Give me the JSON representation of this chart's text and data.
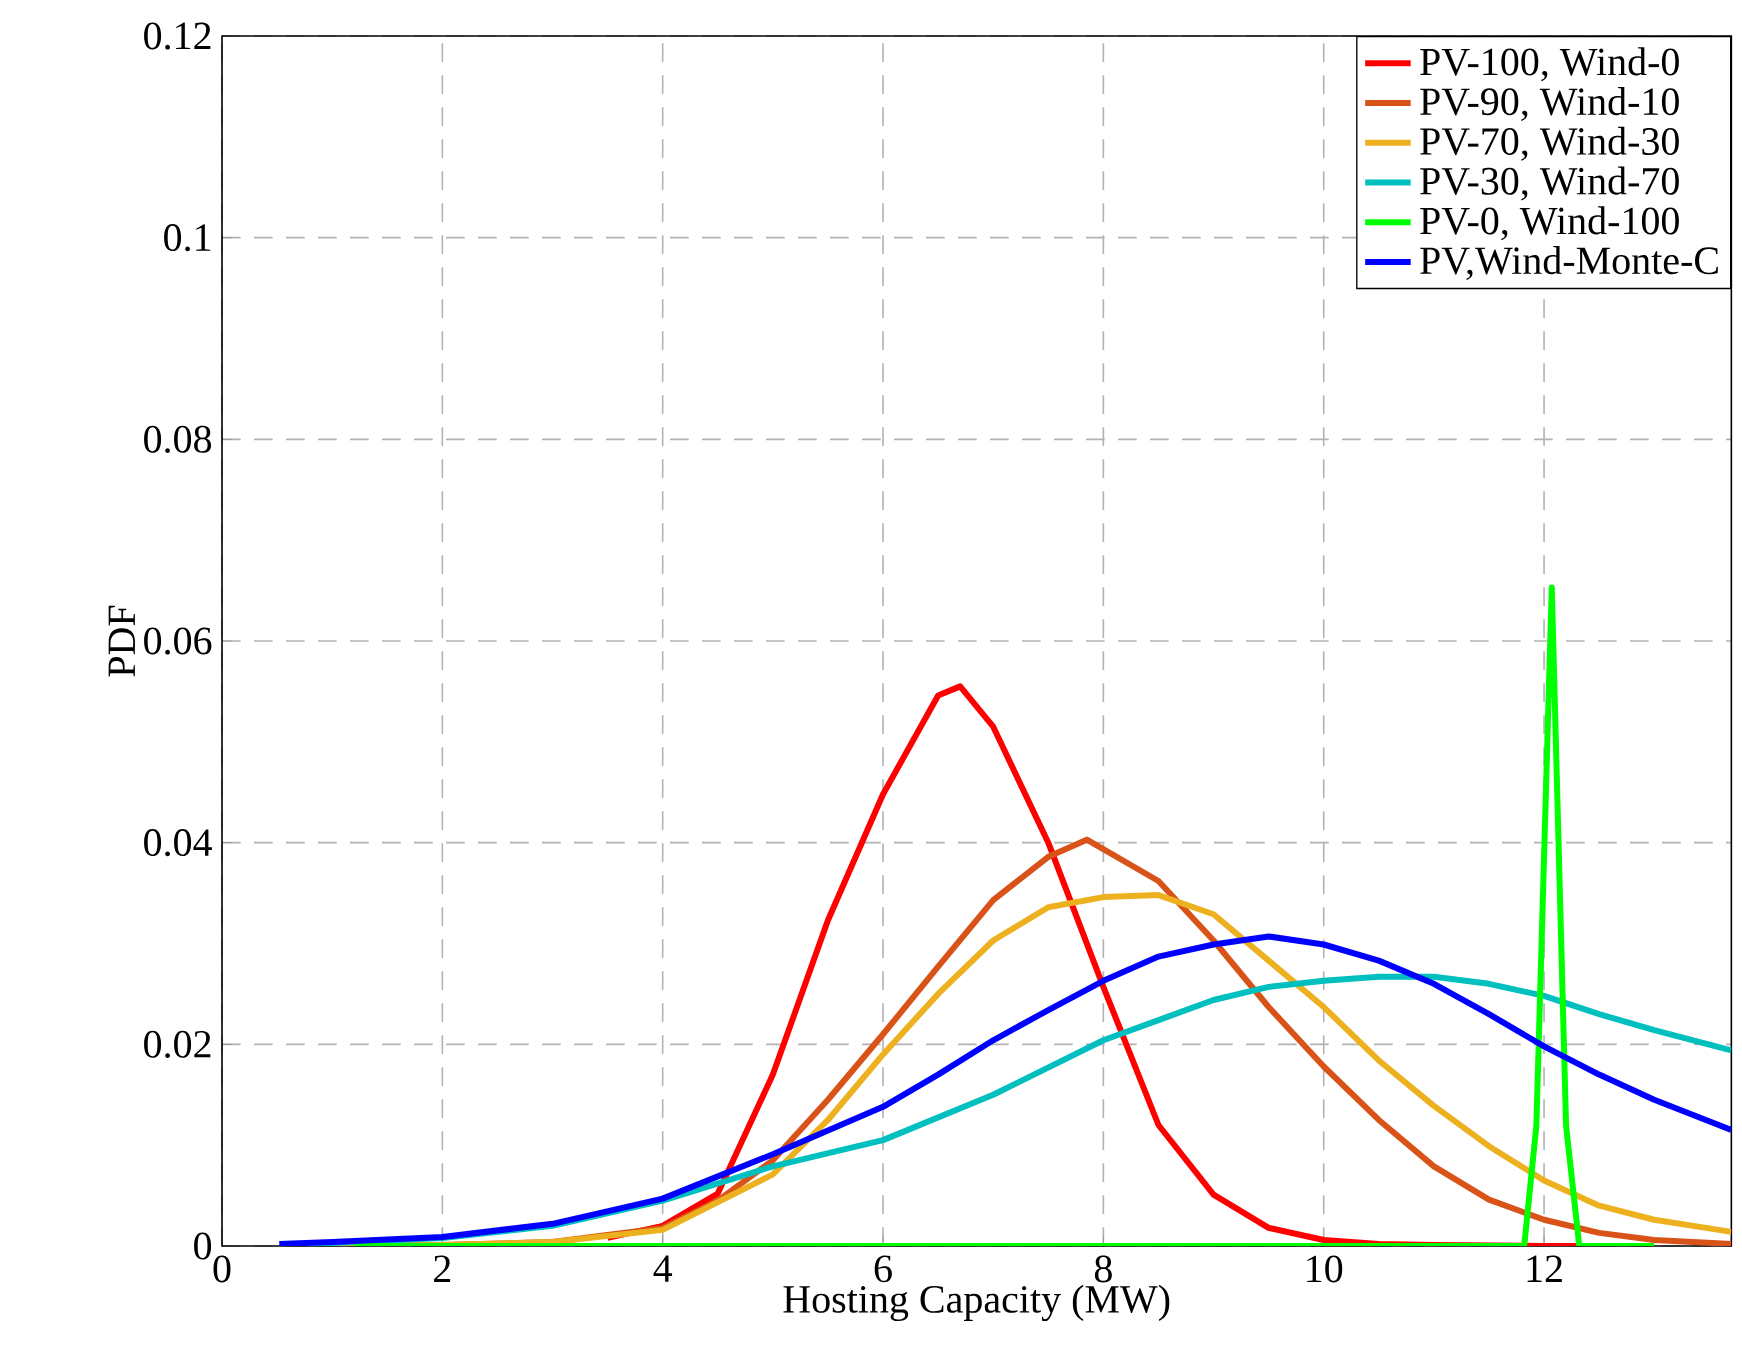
{
  "chart_data": {
    "type": "line",
    "xlabel": "Hosting Capacity (MW)",
    "ylabel": "PDF",
    "xlim": [
      0,
      13.7
    ],
    "ylim": [
      0,
      0.12
    ],
    "xticks": [
      0,
      2,
      4,
      6,
      8,
      10,
      12
    ],
    "yticks": [
      0,
      0.02,
      0.04,
      0.06,
      0.08,
      0.1,
      0.12
    ],
    "grid": true,
    "legend": "top right",
    "series": [
      {
        "name": "PV-100, Wind-0",
        "color": "#ff0000",
        "x": [
          3.5,
          4,
          4.5,
          5,
          5.5,
          6,
          6.5,
          6.7,
          7,
          7.5,
          8,
          8.5,
          9,
          9.5,
          10,
          10.5,
          11,
          12,
          12.4
        ],
        "values": [
          0.0008,
          0.002,
          0.0052,
          0.017,
          0.0323,
          0.0448,
          0.0546,
          0.0555,
          0.0515,
          0.04,
          0.0257,
          0.012,
          0.0051,
          0.0018,
          0.0006,
          0.0002,
          0.0001,
          0,
          0
        ]
      },
      {
        "name": "PV-90, Wind-10",
        "color": "#d95319",
        "x": [
          0.67,
          1,
          2,
          3,
          4,
          4.5,
          5,
          5.5,
          6,
          6.5,
          7,
          7.5,
          7.85,
          8.5,
          9,
          9.5,
          10,
          10.5,
          11,
          11.5,
          12,
          12.5,
          13,
          13.7
        ],
        "values": [
          0,
          0,
          0.0001,
          0.0004,
          0.0018,
          0.0045,
          0.0085,
          0.0145,
          0.021,
          0.0277,
          0.0343,
          0.0386,
          0.0403,
          0.0362,
          0.0303,
          0.0237,
          0.0178,
          0.0125,
          0.0079,
          0.0046,
          0.0026,
          0.0013,
          0.0006,
          0.0002
        ]
      },
      {
        "name": "PV-70, Wind-30",
        "color": "#edb120",
        "x": [
          0.67,
          1,
          2,
          3,
          4,
          5,
          5.5,
          6,
          6.5,
          7,
          7.5,
          8,
          8.5,
          9,
          9.5,
          10,
          10.5,
          11,
          11.5,
          12,
          12.5,
          13,
          13.7
        ],
        "values": [
          0,
          0,
          0.0001,
          0.0004,
          0.0016,
          0.0071,
          0.0125,
          0.019,
          0.025,
          0.0303,
          0.0336,
          0.0346,
          0.0348,
          0.0329,
          0.0283,
          0.0237,
          0.0184,
          0.0139,
          0.0099,
          0.0065,
          0.004,
          0.0026,
          0.0014
        ]
      },
      {
        "name": "PV-30, Wind-70",
        "color": "#00bfbf",
        "x": [
          0.8,
          1,
          2,
          3,
          4,
          5,
          6,
          7,
          8,
          8.5,
          9,
          9.5,
          10,
          10.5,
          11,
          11.5,
          12,
          12.5,
          13,
          13.7
        ],
        "values": [
          0.0002,
          0.0003,
          0.0008,
          0.002,
          0.0045,
          0.0079,
          0.0105,
          0.015,
          0.0204,
          0.0224,
          0.0244,
          0.0257,
          0.0263,
          0.0267,
          0.0267,
          0.026,
          0.0248,
          0.023,
          0.0214,
          0.0194
        ]
      },
      {
        "name": "PV-0, Wind-100",
        "color": "#00ff00",
        "x": [
          1.2,
          11.82,
          11.93,
          12.07,
          12.2,
          12.32,
          13
        ],
        "values": [
          0,
          0,
          0.0119,
          0.0653,
          0.0119,
          0,
          0
        ]
      },
      {
        "name": "PV,Wind-Monte-C",
        "color": "#0000ff",
        "x": [
          0.52,
          1,
          2,
          3,
          4,
          5,
          6,
          6.5,
          7,
          7.5,
          8,
          8.5,
          9,
          9.5,
          10,
          10.5,
          11,
          11.5,
          12,
          12.5,
          13,
          13.7
        ],
        "values": [
          0.0002,
          0.0004,
          0.0009,
          0.0022,
          0.0047,
          0.0091,
          0.0138,
          0.017,
          0.0204,
          0.0234,
          0.0263,
          0.0287,
          0.0299,
          0.0307,
          0.0299,
          0.0283,
          0.026,
          0.023,
          0.0198,
          0.017,
          0.0145,
          0.0115
        ]
      }
    ]
  }
}
